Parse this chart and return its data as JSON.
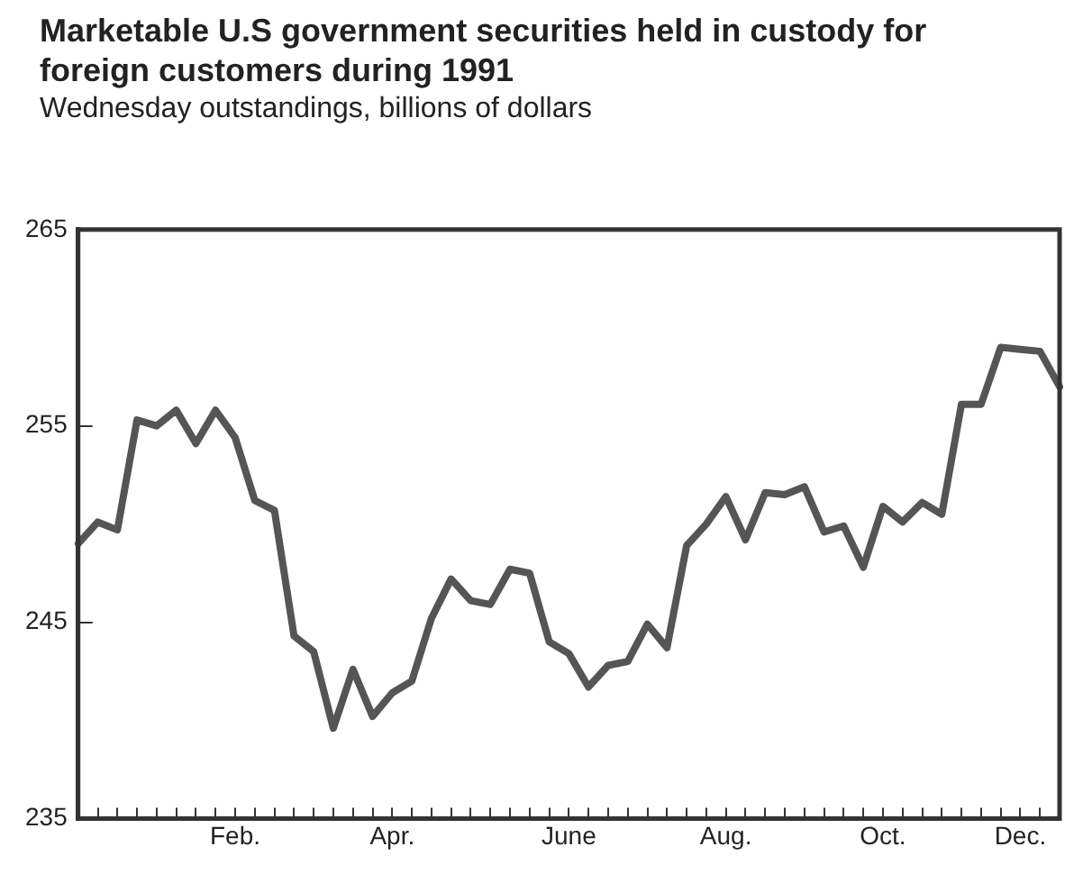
{
  "chart_data": {
    "type": "line",
    "title": "Marketable U.S government securities held in custody for foreign customers during 1991",
    "subtitle": "Wednesday outstandings, billions of dollars",
    "categories": [
      null,
      null,
      null,
      null,
      null,
      null,
      null,
      null,
      "Feb.",
      null,
      null,
      null,
      null,
      null,
      null,
      null,
      "Apr.",
      null,
      null,
      null,
      null,
      null,
      null,
      null,
      null,
      "June",
      null,
      null,
      null,
      null,
      null,
      null,
      null,
      "Aug.",
      null,
      null,
      null,
      null,
      null,
      null,
      null,
      "Oct.",
      null,
      null,
      null,
      null,
      null,
      null,
      "Dec.",
      null,
      null
    ],
    "series": [
      {
        "color": "#555555",
        "values": [
          249.0,
          250.1,
          249.7,
          255.3,
          255.0,
          255.8,
          254.1,
          255.8,
          254.4,
          251.2,
          250.7,
          244.3,
          243.5,
          239.6,
          242.6,
          240.2,
          241.4,
          242.0,
          245.2,
          247.2,
          246.1,
          245.9,
          247.7,
          247.5,
          244.0,
          243.4,
          241.7,
          242.8,
          243.0,
          244.9,
          243.7,
          248.9,
          250.0,
          251.4,
          249.2,
          251.6,
          251.5,
          251.9,
          249.6,
          249.9,
          247.8,
          250.9,
          250.1,
          251.1,
          250.5,
          256.1,
          256.1,
          259.0,
          258.9,
          258.8,
          257.0
        ]
      }
    ],
    "ylim": [
      235,
      265
    ],
    "yticks": [
      235,
      245,
      255,
      265
    ],
    "grid": false,
    "legend": false,
    "marker": "none",
    "line_style": "solid"
  }
}
